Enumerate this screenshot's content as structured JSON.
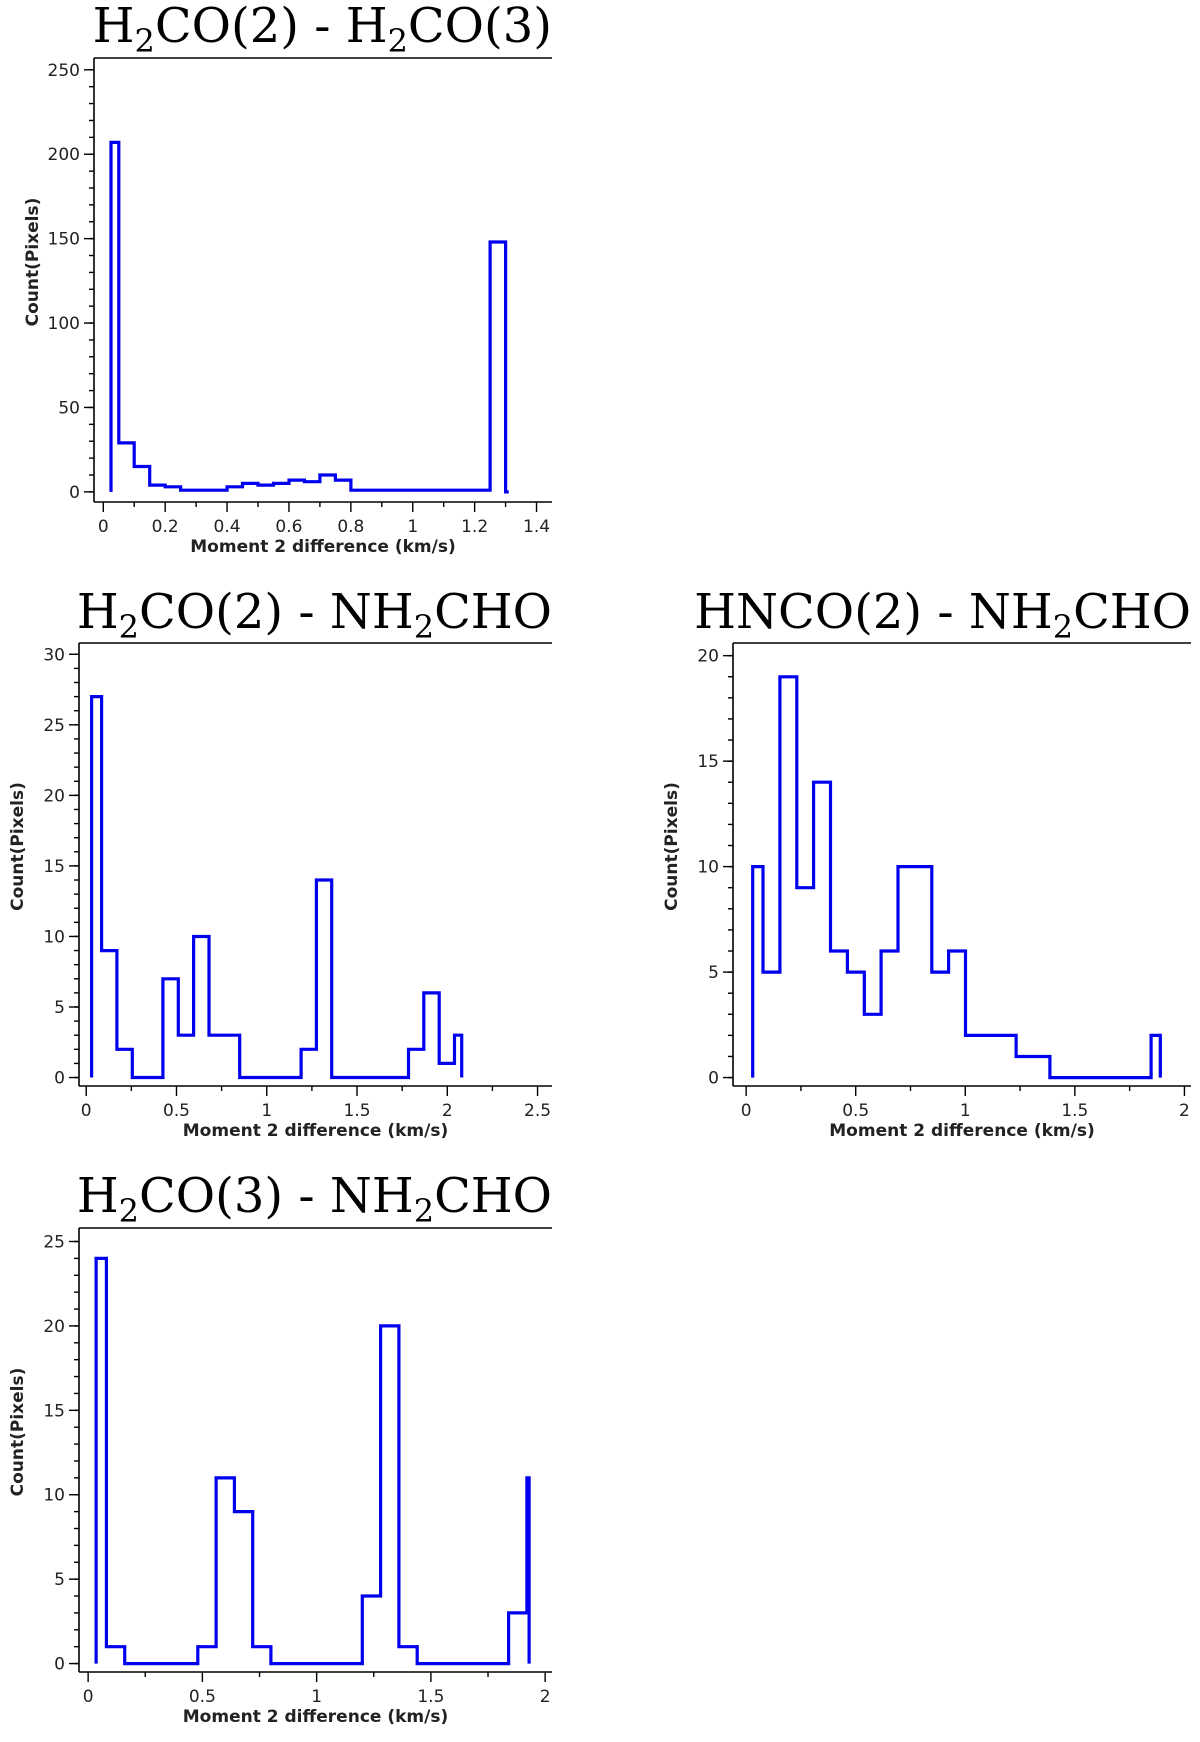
{
  "chart_data": [
    {
      "type": "histogram",
      "title_parts": [
        {
          "t": "H"
        },
        {
          "t": "2",
          "sub": true
        },
        {
          "t": "CO(2) - H"
        },
        {
          "t": "2",
          "sub": true
        },
        {
          "t": "CO(3)"
        }
      ],
      "xlabel": "Moment 2 difference (km/s)",
      "ylabel": "Count(Pixels)",
      "xlim": [
        -0.03,
        1.45
      ],
      "ylim": [
        -6,
        257
      ],
      "xticks": [
        0,
        0.2,
        0.4,
        0.6,
        0.8,
        1,
        1.2,
        1.4
      ],
      "xtick_labels": [
        "0",
        "0.2",
        "0.4",
        "0.6",
        "0.8",
        "1",
        "1.2",
        "1.4"
      ],
      "yticks": [
        0,
        50,
        100,
        150,
        200,
        250
      ],
      "ytick_labels": [
        "0",
        "50",
        "100",
        "150",
        "200",
        "250"
      ],
      "yminor_step": 10,
      "bin_edges": [
        0.025,
        0.05,
        0.1,
        0.15,
        0.2,
        0.25,
        0.3,
        0.35,
        0.4,
        0.45,
        0.5,
        0.55,
        0.6,
        0.65,
        0.7,
        0.75,
        0.8,
        0.85,
        0.9,
        0.95,
        1.0,
        1.05,
        1.1,
        1.15,
        1.2,
        1.25,
        1.3,
        1.31
      ],
      "counts": [
        207,
        29,
        15,
        4,
        3,
        1,
        1,
        1,
        3,
        5,
        4,
        5,
        7,
        6,
        10,
        7,
        1,
        1,
        1,
        1,
        1,
        1,
        1,
        1,
        1,
        148,
        0
      ]
    },
    {
      "type": "histogram",
      "title_parts": [
        {
          "t": "H"
        },
        {
          "t": "2",
          "sub": true
        },
        {
          "t": "CO(2) - NH"
        },
        {
          "t": "2",
          "sub": true
        },
        {
          "t": "CHO"
        }
      ],
      "xlabel": "Moment 2 difference (km/s)",
      "ylabel": "Count(Pixels)",
      "xlim": [
        -0.04,
        2.58
      ],
      "ylim": [
        -0.6,
        30.8
      ],
      "xticks": [
        0,
        0.5,
        1,
        1.5,
        2,
        2.5
      ],
      "xtick_labels": [
        "0",
        "0.5",
        "1",
        "1.5",
        "2",
        "2.5"
      ],
      "yticks": [
        0,
        5,
        10,
        15,
        20,
        25,
        30
      ],
      "ytick_labels": [
        "0",
        "5",
        "10",
        "15",
        "20",
        "25",
        "30"
      ],
      "yminor_step": 1,
      "bin_edges": [
        0.03,
        0.085,
        0.17,
        0.255,
        0.425,
        0.51,
        0.595,
        0.68,
        0.85,
        1.19,
        1.275,
        1.36,
        1.785,
        1.87,
        1.955,
        2.04,
        2.08
      ],
      "counts": [
        27,
        9,
        2,
        0,
        7,
        3,
        10,
        3,
        0,
        2,
        14,
        0,
        2,
        6,
        1,
        3
      ]
    },
    {
      "type": "histogram",
      "title_parts": [
        {
          "t": "HNCO(2) - NH"
        },
        {
          "t": "2",
          "sub": true
        },
        {
          "t": "CHO"
        }
      ],
      "xlabel": "Moment 2 difference (km/s)",
      "ylabel": "Count(Pixels)",
      "xlim": [
        -0.06,
        2.03
      ],
      "ylim": [
        -0.4,
        20.6
      ],
      "xticks": [
        0,
        0.5,
        1,
        1.5,
        2
      ],
      "xtick_labels": [
        "0",
        "0.5",
        "1",
        "1.5",
        "2"
      ],
      "yticks": [
        0,
        5,
        10,
        15,
        20
      ],
      "ytick_labels": [
        "0",
        "5",
        "10",
        "15",
        "20"
      ],
      "yminor_step": 1,
      "bin_edges": [
        0.03,
        0.077,
        0.154,
        0.231,
        0.308,
        0.385,
        0.462,
        0.539,
        0.616,
        0.693,
        0.847,
        0.924,
        1.001,
        1.232,
        1.386,
        1.848,
        1.89
      ],
      "counts": [
        10,
        5,
        19,
        9,
        14,
        6,
        5,
        3,
        6,
        10,
        5,
        6,
        2,
        1,
        0,
        2
      ]
    },
    {
      "type": "histogram",
      "title_parts": [
        {
          "t": "H"
        },
        {
          "t": "2",
          "sub": true
        },
        {
          "t": "CO(3) - NH"
        },
        {
          "t": "2",
          "sub": true
        },
        {
          "t": "CHO"
        }
      ],
      "xlabel": "Moment 2 difference (km/s)",
      "ylabel": "Count(Pixels)",
      "xlim": [
        -0.04,
        2.03
      ],
      "ylim": [
        -0.5,
        25.8
      ],
      "xticks": [
        0,
        0.5,
        1,
        1.5,
        2
      ],
      "xtick_labels": [
        "0",
        "0.5",
        "1",
        "1.5",
        "2"
      ],
      "yticks": [
        0,
        5,
        10,
        15,
        20,
        25
      ],
      "ytick_labels": [
        "0",
        "5",
        "10",
        "15",
        "20",
        "25"
      ],
      "yminor_step": 1,
      "bin_edges": [
        0.035,
        0.08,
        0.16,
        0.48,
        0.56,
        0.64,
        0.72,
        0.8,
        1.2,
        1.28,
        1.36,
        1.44,
        1.84,
        1.92,
        1.93
      ],
      "counts": [
        24,
        1,
        0,
        1,
        11,
        9,
        1,
        0,
        4,
        20,
        1,
        0,
        3,
        11
      ]
    }
  ]
}
